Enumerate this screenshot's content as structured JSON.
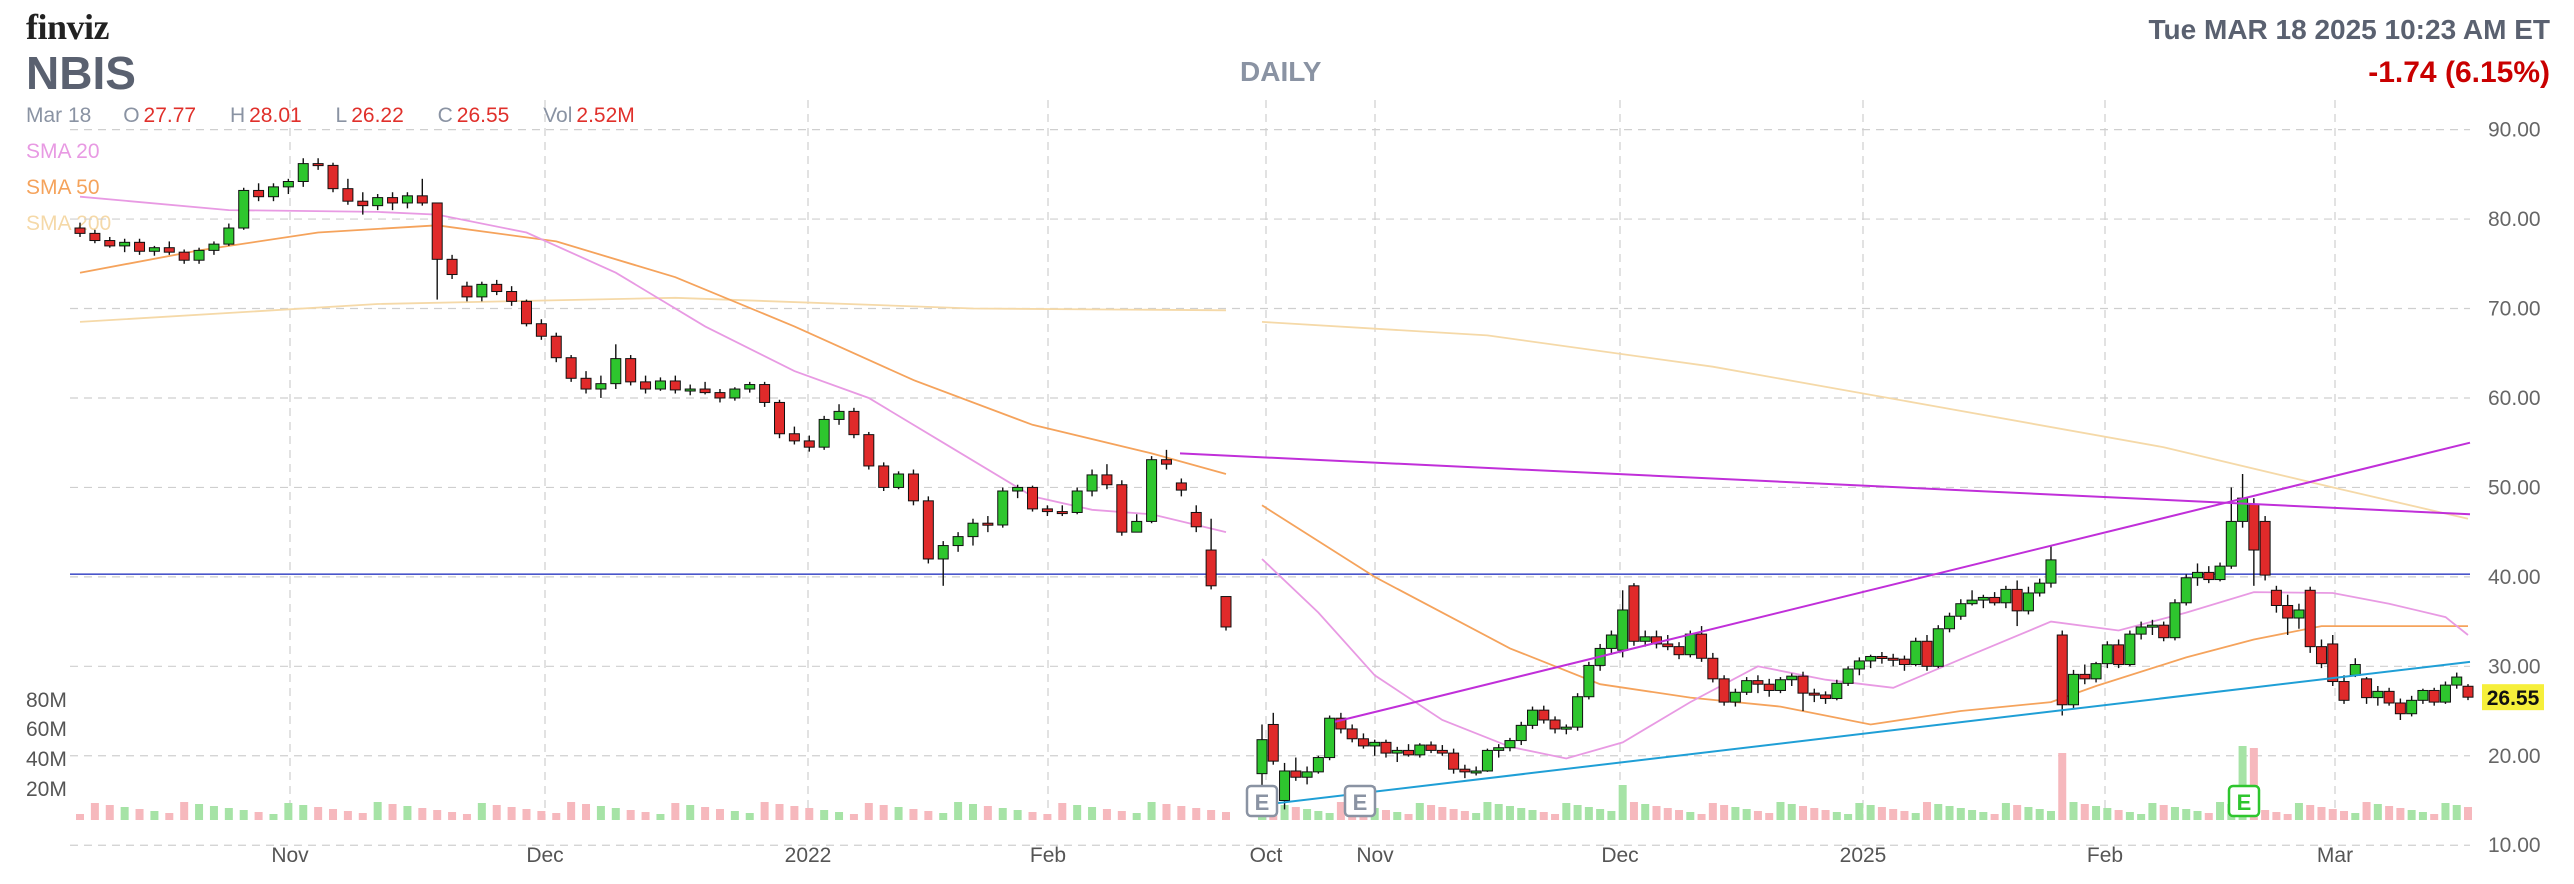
{
  "header": {
    "logo": "finviz",
    "ticker": "NBIS",
    "timeframe": "DAILY",
    "datetime": "Tue MAR 18 2025 10:23 AM ET",
    "change": "-1.74 (6.15%)"
  },
  "ohlc": {
    "date": "Mar 18",
    "open_label": "O",
    "open": "27.77",
    "high_label": "H",
    "high": "28.01",
    "low_label": "L",
    "low": "26.22",
    "close_label": "C",
    "close": "26.55",
    "vol_label": "Vol",
    "vol": "2.52M"
  },
  "indicators": [
    {
      "name": "SMA 20",
      "color": "#e89ae3"
    },
    {
      "name": "SMA 50",
      "color": "#f5a35c"
    },
    {
      "name": "SMA 200",
      "color": "#f5d9a8"
    }
  ],
  "colors": {
    "up": "#2ec62e",
    "down": "#e02a2a",
    "vol_up": "#a6e3a6",
    "vol_down": "#f6b8bd",
    "grid": "#cfcfcf",
    "trend_magenta": "#c02fd9",
    "trend_cyan": "#1f9fd6",
    "support": "#4a56c9",
    "last_price_bg": "#f6ef3a"
  },
  "chart_data": {
    "type": "candlestick",
    "ylim": [
      8,
      90
    ],
    "y_ticks": [
      "90.00",
      "80.00",
      "70.00",
      "60.00",
      "50.00",
      "40.00",
      "30.00",
      "20.00",
      "10.00"
    ],
    "x_ticks": [
      "Nov",
      "Dec",
      "2022",
      "Feb",
      "Oct",
      "Nov",
      "Dec",
      "2025",
      "Feb",
      "Mar"
    ],
    "volume_ticks": [
      "80M",
      "60M",
      "40M",
      "20M"
    ],
    "last_price": "26.55",
    "support_level": 40.3,
    "earnings_markers": [
      "E",
      "E",
      "E"
    ],
    "candles_segment1": [
      [
        79.0,
        79.6,
        78.0,
        78.4
      ],
      [
        78.4,
        78.8,
        77.3,
        77.6
      ],
      [
        77.6,
        78.0,
        76.8,
        77.0
      ],
      [
        77.0,
        77.8,
        76.3,
        77.4
      ],
      [
        77.4,
        77.8,
        76.0,
        76.4
      ],
      [
        76.4,
        77.0,
        75.9,
        76.8
      ],
      [
        76.8,
        77.5,
        76.0,
        76.3
      ],
      [
        76.3,
        76.6,
        75.0,
        75.4
      ],
      [
        75.4,
        76.8,
        75.0,
        76.5
      ],
      [
        76.5,
        77.5,
        76.0,
        77.2
      ],
      [
        77.2,
        79.5,
        77.0,
        79.0
      ],
      [
        79.0,
        83.5,
        78.8,
        83.2
      ],
      [
        83.2,
        84.0,
        82.0,
        82.5
      ],
      [
        82.5,
        84.0,
        82.0,
        83.6
      ],
      [
        83.6,
        84.5,
        82.8,
        84.2
      ],
      [
        84.2,
        86.8,
        83.6,
        86.2
      ],
      [
        86.2,
        86.8,
        85.5,
        86.0
      ],
      [
        86.0,
        86.3,
        83.0,
        83.4
      ],
      [
        83.4,
        84.5,
        81.6,
        82.0
      ],
      [
        82.0,
        83.0,
        80.5,
        81.5
      ],
      [
        81.5,
        82.8,
        81.0,
        82.4
      ],
      [
        82.4,
        83.0,
        81.0,
        81.8
      ],
      [
        81.8,
        83.0,
        81.2,
        82.6
      ],
      [
        82.6,
        84.5,
        81.5,
        81.8
      ],
      [
        81.8,
        81.8,
        71.0,
        75.5
      ],
      [
        75.5,
        76.0,
        73.3,
        73.8
      ],
      [
        72.5,
        73.0,
        70.8,
        71.3
      ],
      [
        71.3,
        73.0,
        70.8,
        72.7
      ],
      [
        72.7,
        73.2,
        71.5,
        71.9
      ],
      [
        71.9,
        72.5,
        70.3,
        70.8
      ],
      [
        70.8,
        71.0,
        68.0,
        68.3
      ],
      [
        68.3,
        68.8,
        66.5,
        66.9
      ],
      [
        66.9,
        67.3,
        64.0,
        64.5
      ],
      [
        64.5,
        64.8,
        61.8,
        62.2
      ],
      [
        62.2,
        63.0,
        60.5,
        61.0
      ],
      [
        61.0,
        62.5,
        60.0,
        61.6
      ],
      [
        61.6,
        66.0,
        61.0,
        64.4
      ],
      [
        64.4,
        64.8,
        61.4,
        61.8
      ],
      [
        61.8,
        62.5,
        60.5,
        61.0
      ],
      [
        61.0,
        62.3,
        60.8,
        61.9
      ],
      [
        61.9,
        62.5,
        60.5,
        60.9
      ],
      [
        60.9,
        61.5,
        60.3,
        61.0
      ],
      [
        61.0,
        61.8,
        60.4,
        60.6
      ],
      [
        60.6,
        61.0,
        59.5,
        60.0
      ],
      [
        60.0,
        61.2,
        59.7,
        61.0
      ],
      [
        61.0,
        61.8,
        60.6,
        61.5
      ],
      [
        61.5,
        61.8,
        59.0,
        59.5
      ],
      [
        59.5,
        59.8,
        55.5,
        56.0
      ],
      [
        56.0,
        56.8,
        54.8,
        55.2
      ],
      [
        55.2,
        55.8,
        54.0,
        54.5
      ],
      [
        54.5,
        58.0,
        54.2,
        57.6
      ],
      [
        57.6,
        59.3,
        57.0,
        58.5
      ],
      [
        58.5,
        58.9,
        55.5,
        55.9
      ],
      [
        55.9,
        56.2,
        52.0,
        52.4
      ],
      [
        52.4,
        52.8,
        49.6,
        50.0
      ],
      [
        50.0,
        51.8,
        49.8,
        51.5
      ],
      [
        51.5,
        52.0,
        48.0,
        48.5
      ],
      [
        48.5,
        49.0,
        41.5,
        42.0
      ],
      [
        42.0,
        44.0,
        39.0,
        43.5
      ],
      [
        43.5,
        45.0,
        42.8,
        44.5
      ],
      [
        44.5,
        46.5,
        43.5,
        46.0
      ],
      [
        46.0,
        46.8,
        45.0,
        45.8
      ],
      [
        45.8,
        50.0,
        45.5,
        49.6
      ],
      [
        49.6,
        50.3,
        48.8,
        50.0
      ],
      [
        50.0,
        50.2,
        47.3,
        47.6
      ],
      [
        47.6,
        48.0,
        46.8,
        47.3
      ],
      [
        47.3,
        48.0,
        46.8,
        47.2
      ],
      [
        47.2,
        50.0,
        47.0,
        49.6
      ],
      [
        49.6,
        52.0,
        49.0,
        51.4
      ],
      [
        51.4,
        52.6,
        49.8,
        50.3
      ],
      [
        50.3,
        50.8,
        44.6,
        45.0
      ],
      [
        45.0,
        47.0,
        45.2,
        46.2
      ],
      [
        46.2,
        53.5,
        46.0,
        53.1
      ],
      [
        53.1,
        54.2,
        52.0,
        52.6
      ],
      [
        50.5,
        51.0,
        49.0,
        49.7
      ],
      [
        47.2,
        48.0,
        45.0,
        45.6
      ],
      [
        43.0,
        46.5,
        38.6,
        39.0
      ],
      [
        37.8,
        37.8,
        34.0,
        34.4
      ]
    ],
    "candles_segment2": [
      [
        18.0,
        23.5,
        13.8,
        21.8
      ],
      [
        23.5,
        24.8,
        19.0,
        19.4
      ],
      [
        15.0,
        19.2,
        14.0,
        18.3
      ],
      [
        18.3,
        19.8,
        17.2,
        17.6
      ],
      [
        17.6,
        18.8,
        16.8,
        18.2
      ],
      [
        18.2,
        20.0,
        18.0,
        19.8
      ],
      [
        19.8,
        24.5,
        19.5,
        24.2
      ],
      [
        24.2,
        24.8,
        22.5,
        23.0
      ],
      [
        23.0,
        23.5,
        21.5,
        21.9
      ],
      [
        21.9,
        22.5,
        20.8,
        21.1
      ],
      [
        21.1,
        21.8,
        20.0,
        21.5
      ],
      [
        21.5,
        21.8,
        19.8,
        20.3
      ],
      [
        20.3,
        21.0,
        19.3,
        20.6
      ],
      [
        20.6,
        21.3,
        19.9,
        20.1
      ],
      [
        20.1,
        21.4,
        19.8,
        21.2
      ],
      [
        21.2,
        21.6,
        20.3,
        20.6
      ],
      [
        20.6,
        21.2,
        20.0,
        20.3
      ],
      [
        20.3,
        20.8,
        18.0,
        18.5
      ],
      [
        18.5,
        19.0,
        17.5,
        18.2
      ],
      [
        18.2,
        18.8,
        17.8,
        18.3
      ],
      [
        18.3,
        20.8,
        18.2,
        20.6
      ],
      [
        20.6,
        21.3,
        19.8,
        20.9
      ],
      [
        20.9,
        22.0,
        20.5,
        21.7
      ],
      [
        21.7,
        23.8,
        21.2,
        23.4
      ],
      [
        23.4,
        25.5,
        23.0,
        25.1
      ],
      [
        25.1,
        25.6,
        23.6,
        24.0
      ],
      [
        24.0,
        24.4,
        22.5,
        23.0
      ],
      [
        23.0,
        23.5,
        22.4,
        23.2
      ],
      [
        23.2,
        27.0,
        22.8,
        26.6
      ],
      [
        26.6,
        30.5,
        26.3,
        30.1
      ],
      [
        30.1,
        32.5,
        29.5,
        32.0
      ],
      [
        32.0,
        34.0,
        31.3,
        33.5
      ],
      [
        31.8,
        38.5,
        31.0,
        36.3
      ],
      [
        39.0,
        39.3,
        32.3,
        32.8
      ],
      [
        32.8,
        34.0,
        32.2,
        33.3
      ],
      [
        33.3,
        34.0,
        32.0,
        32.5
      ],
      [
        32.5,
        33.5,
        31.8,
        32.2
      ],
      [
        32.2,
        32.7,
        30.8,
        31.3
      ],
      [
        31.3,
        34.0,
        31.0,
        33.6
      ],
      [
        33.6,
        34.5,
        30.5,
        30.9
      ],
      [
        30.9,
        31.5,
        28.2,
        28.6
      ],
      [
        28.6,
        29.0,
        25.6,
        26.0
      ],
      [
        26.0,
        27.5,
        25.5,
        27.1
      ],
      [
        27.1,
        28.8,
        26.8,
        28.4
      ],
      [
        28.4,
        29.0,
        27.0,
        28.0
      ],
      [
        28.0,
        28.6,
        26.6,
        27.3
      ],
      [
        27.3,
        28.8,
        27.0,
        28.5
      ],
      [
        28.5,
        29.2,
        27.8,
        28.9
      ],
      [
        28.9,
        29.4,
        25.0,
        27.0
      ],
      [
        27.0,
        27.5,
        26.0,
        26.8
      ],
      [
        26.8,
        27.2,
        25.8,
        26.4
      ],
      [
        26.4,
        28.5,
        26.2,
        28.1
      ],
      [
        28.1,
        30.0,
        27.8,
        29.7
      ],
      [
        29.7,
        31.0,
        29.0,
        30.6
      ],
      [
        30.6,
        31.3,
        29.8,
        31.1
      ],
      [
        31.1,
        31.6,
        30.3,
        30.9
      ],
      [
        30.9,
        31.4,
        30.0,
        30.8
      ],
      [
        30.8,
        31.2,
        29.5,
        30.2
      ],
      [
        30.2,
        33.2,
        30.0,
        32.8
      ],
      [
        32.8,
        33.5,
        29.5,
        30.0
      ],
      [
        30.0,
        34.6,
        29.8,
        34.2
      ],
      [
        34.2,
        36.0,
        33.8,
        35.6
      ],
      [
        35.6,
        37.5,
        35.2,
        37.0
      ],
      [
        37.0,
        38.5,
        36.8,
        37.4
      ],
      [
        37.4,
        38.0,
        36.5,
        37.7
      ],
      [
        37.7,
        38.3,
        36.8,
        37.1
      ],
      [
        37.1,
        39.0,
        36.5,
        38.6
      ],
      [
        38.6,
        39.6,
        34.5,
        36.2
      ],
      [
        36.2,
        38.9,
        35.8,
        38.2
      ],
      [
        38.2,
        39.8,
        37.8,
        39.3
      ],
      [
        39.3,
        43.5,
        38.8,
        41.9
      ],
      [
        33.5,
        34.0,
        24.5,
        25.7
      ],
      [
        25.7,
        29.6,
        25.3,
        29.1
      ],
      [
        29.1,
        30.2,
        28.0,
        28.6
      ],
      [
        28.6,
        30.5,
        28.2,
        30.3
      ],
      [
        30.3,
        32.8,
        29.8,
        32.4
      ],
      [
        32.4,
        33.0,
        29.8,
        30.2
      ],
      [
        30.2,
        34.0,
        30.0,
        33.6
      ],
      [
        33.6,
        35.0,
        33.0,
        34.4
      ],
      [
        34.4,
        35.2,
        33.5,
        34.6
      ],
      [
        34.6,
        35.0,
        32.8,
        33.2
      ],
      [
        33.2,
        37.5,
        32.9,
        37.1
      ],
      [
        37.1,
        40.3,
        36.8,
        39.9
      ],
      [
        39.9,
        41.5,
        39.0,
        40.5
      ],
      [
        40.5,
        41.2,
        39.3,
        39.7
      ],
      [
        39.7,
        41.6,
        39.5,
        41.2
      ],
      [
        41.2,
        50.0,
        40.9,
        46.2
      ],
      [
        46.2,
        51.5,
        45.5,
        48.8
      ],
      [
        48.1,
        48.8,
        39.0,
        43.0
      ],
      [
        46.2,
        46.8,
        39.6,
        40.2
      ],
      [
        38.5,
        39.0,
        36.0,
        36.8
      ],
      [
        36.8,
        38.0,
        33.5,
        35.4
      ],
      [
        35.4,
        37.0,
        34.2,
        36.3
      ],
      [
        38.5,
        38.9,
        31.5,
        32.2
      ],
      [
        32.2,
        33.0,
        29.8,
        30.3
      ],
      [
        32.5,
        33.5,
        27.8,
        28.3
      ],
      [
        28.3,
        29.0,
        25.8,
        26.2
      ],
      [
        29.0,
        30.9,
        28.8,
        30.2
      ],
      [
        28.6,
        28.8,
        25.8,
        26.5
      ],
      [
        26.5,
        27.8,
        25.6,
        27.2
      ],
      [
        27.2,
        27.6,
        25.6,
        25.9
      ],
      [
        25.9,
        26.4,
        24.0,
        24.7
      ],
      [
        24.7,
        26.7,
        24.4,
        26.2
      ],
      [
        26.2,
        27.5,
        25.8,
        27.3
      ],
      [
        27.3,
        27.6,
        25.6,
        26.0
      ],
      [
        26.0,
        28.3,
        25.8,
        27.9
      ],
      [
        27.9,
        29.3,
        27.5,
        28.8
      ],
      [
        27.77,
        28.01,
        26.22,
        26.55
      ]
    ],
    "sma20_segment1": [
      [
        0,
        82.5
      ],
      [
        10,
        81.0
      ],
      [
        20,
        80.8
      ],
      [
        24,
        80.5
      ],
      [
        30,
        78.5
      ],
      [
        36,
        74.0
      ],
      [
        42,
        68.0
      ],
      [
        48,
        63.0
      ],
      [
        53,
        60.0
      ],
      [
        58,
        55.0
      ],
      [
        64,
        49.0
      ],
      [
        68,
        47.5
      ],
      [
        72,
        47.0
      ],
      [
        77,
        45.0
      ]
    ],
    "sma20_segment2": [
      [
        0,
        42.0
      ],
      [
        5,
        36.0
      ],
      [
        10,
        29.0
      ],
      [
        16,
        24.0
      ],
      [
        22,
        21.0
      ],
      [
        27,
        19.7
      ],
      [
        32,
        21.5
      ],
      [
        38,
        26.0
      ],
      [
        44,
        30.0
      ],
      [
        50,
        28.5
      ],
      [
        56,
        27.6
      ],
      [
        62,
        30.8
      ],
      [
        70,
        35.0
      ],
      [
        76,
        34.0
      ],
      [
        82,
        36.0
      ],
      [
        88,
        38.3
      ],
      [
        95,
        38.2
      ],
      [
        100,
        37.0
      ],
      [
        105,
        35.5
      ],
      [
        107,
        33.5
      ]
    ],
    "sma50_segment1": [
      [
        0,
        74.0
      ],
      [
        8,
        76.5
      ],
      [
        16,
        78.5
      ],
      [
        24,
        79.3
      ],
      [
        32,
        77.5
      ],
      [
        40,
        73.5
      ],
      [
        48,
        68.0
      ],
      [
        56,
        62.0
      ],
      [
        64,
        57.0
      ],
      [
        72,
        53.8
      ],
      [
        77,
        51.5
      ]
    ],
    "sma50_segment2": [
      [
        0,
        48.0
      ],
      [
        10,
        40.0
      ],
      [
        22,
        32.0
      ],
      [
        30,
        28.0
      ],
      [
        38,
        26.5
      ],
      [
        46,
        25.5
      ],
      [
        54,
        23.5
      ],
      [
        62,
        25.0
      ],
      [
        70,
        26.0
      ],
      [
        74,
        27.8
      ],
      [
        82,
        31.0
      ],
      [
        88,
        33.0
      ],
      [
        94,
        34.5
      ],
      [
        107,
        34.5
      ]
    ],
    "sma200_segment1": [
      [
        0,
        68.5
      ],
      [
        20,
        70.5
      ],
      [
        40,
        71.2
      ],
      [
        60,
        70.0
      ],
      [
        77,
        69.8
      ]
    ],
    "sma200_segment2": [
      [
        0,
        68.5
      ],
      [
        20,
        67.0
      ],
      [
        40,
        63.5
      ],
      [
        60,
        59.0
      ],
      [
        80,
        54.5
      ],
      [
        95,
        50.0
      ],
      [
        107,
        46.5
      ]
    ],
    "trendlines": [
      {
        "name": "resistance",
        "points": [
          [
            1.0,
            53.8
          ],
          [
            2.0,
            47.0
          ]
        ]
      },
      {
        "name": "upper-channel",
        "points": [
          [
            1.043,
            23.8
          ],
          [
            2.0,
            55.0
          ]
        ]
      },
      {
        "name": "lower-channel",
        "points": [
          [
            1.008,
            14.5
          ],
          [
            2.0,
            30.5
          ]
        ]
      }
    ]
  }
}
